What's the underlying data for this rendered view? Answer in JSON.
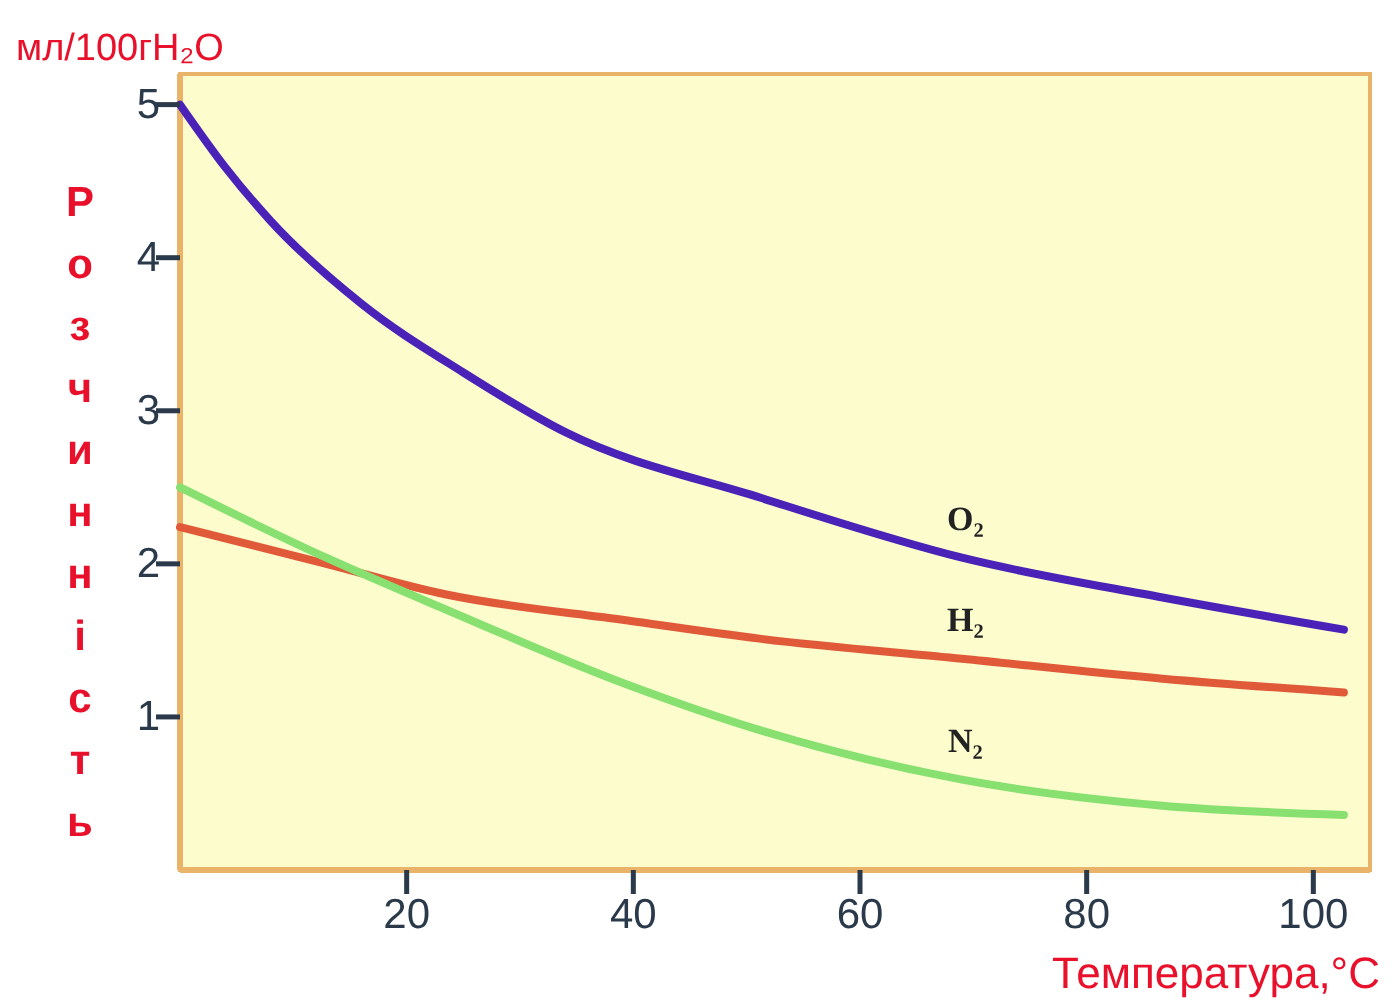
{
  "chart_data": {
    "type": "line",
    "xlabel": "Температура,°C",
    "ylabel": "Розчинність",
    "annotations": [
      "мл/100гH₂O"
    ],
    "xlim": [
      0,
      105
    ],
    "ylim": [
      0,
      5.2
    ],
    "xticks": [
      20,
      40,
      60,
      80,
      100
    ],
    "yticks": [
      1,
      2,
      3,
      4,
      5
    ],
    "grid": false,
    "marker": "none",
    "line_style": "solid",
    "tick_labels": "xy",
    "series": [
      {
        "name": "O₂",
        "color": "#4b22b8",
        "x": [
          0,
          4,
          8,
          16,
          25,
          34,
          51.3,
          69,
          86.7,
          102.7
        ],
        "values": [
          5.0,
          4.59,
          4.24,
          3.7,
          3.25,
          2.86,
          2.43,
          2.04,
          1.78,
          1.57
        ]
      },
      {
        "name": "H₂",
        "color": "#e05a3a",
        "x": [
          0,
          12.9,
          23.5,
          39.5,
          51.3,
          69,
          86.7,
          102.7
        ],
        "values": [
          2.24,
          2.0,
          1.8,
          1.63,
          1.51,
          1.38,
          1.25,
          1.16
        ]
      },
      {
        "name": "N₂",
        "color": "#88e070",
        "x": [
          0,
          12.9,
          23.5,
          39.5,
          51.3,
          69,
          86.7,
          102.7
        ],
        "values": [
          2.5,
          2.04,
          1.7,
          1.21,
          0.91,
          0.59,
          0.42,
          0.36
        ]
      }
    ]
  }
}
